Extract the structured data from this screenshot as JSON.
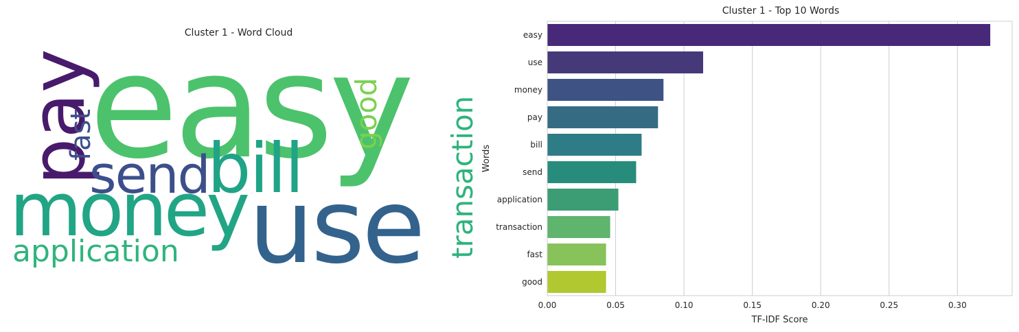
{
  "wordcloud": {
    "title": "Cluster 1 - Word Cloud",
    "words": [
      {
        "text": "easy",
        "color": "#4cc26c"
      },
      {
        "text": "use",
        "color": "#33638d"
      },
      {
        "text": "money",
        "color": "#21a585"
      },
      {
        "text": "bill",
        "color": "#20a386"
      },
      {
        "text": "pay",
        "color": "#481a6c"
      },
      {
        "text": "send",
        "color": "#3c4f8a"
      },
      {
        "text": "application",
        "color": "#2fb47c"
      },
      {
        "text": "transaction",
        "color": "#2eb37c"
      },
      {
        "text": "good",
        "color": "#7ad151"
      },
      {
        "text": "fast",
        "color": "#3d4e8a"
      }
    ]
  },
  "chart_data": {
    "type": "bar",
    "orientation": "horizontal",
    "title": "Cluster 1 - Top 10 Words",
    "xlabel": "TF-IDF Score",
    "ylabel": "Words",
    "categories": [
      "easy",
      "use",
      "money",
      "pay",
      "bill",
      "send",
      "application",
      "transaction",
      "fast",
      "good"
    ],
    "values": [
      0.324,
      0.114,
      0.085,
      0.081,
      0.069,
      0.065,
      0.052,
      0.046,
      0.043,
      0.043
    ],
    "colors": [
      "#482878",
      "#46397a",
      "#3e5384",
      "#366b84",
      "#2e7c85",
      "#288c7c",
      "#3c9c73",
      "#5fb46e",
      "#88c25a",
      "#b2c831"
    ],
    "xlim": [
      0,
      0.34
    ],
    "xticks": [
      "0.00",
      "0.05",
      "0.10",
      "0.15",
      "0.20",
      "0.25",
      "0.30"
    ],
    "grid": "vertical"
  }
}
